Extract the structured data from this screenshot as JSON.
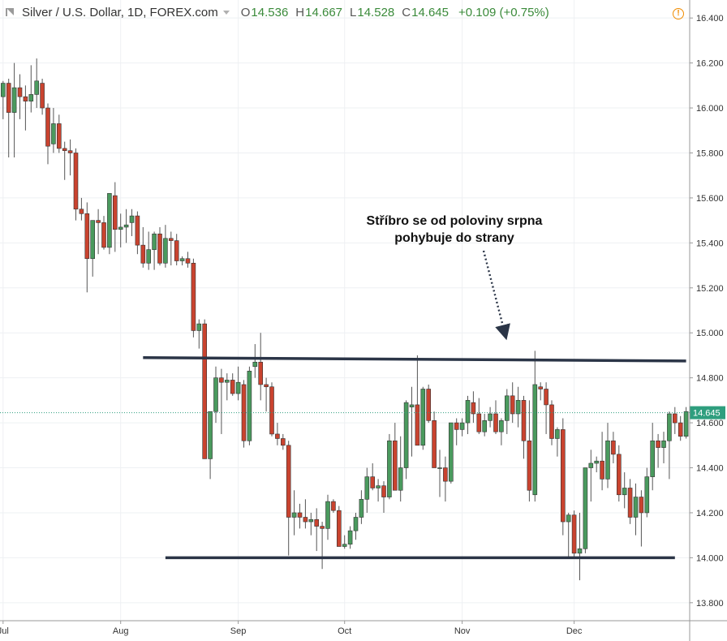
{
  "header": {
    "symbol": "Silver / U.S. Dollar, 1D, FOREX.com",
    "open_label": "O",
    "open": "14.536",
    "high_label": "H",
    "high": "14.667",
    "low_label": "L",
    "low": "14.528",
    "close_label": "C",
    "close": "14.645",
    "change": "+0.109 (+0.75%)"
  },
  "icons": {
    "symbol": "flag-icon",
    "alert": "warning-icon"
  },
  "colors": {
    "up": "#4a9a5e",
    "down": "#c9432f",
    "level_line": "#2b3547",
    "last_price": "#2e9e7e"
  },
  "annotation": {
    "line1": "Stříbro se od poloviny srpna",
    "line2": "pohybuje do strany"
  },
  "chart_data": {
    "type": "candlestick",
    "y_ticks": [
      "16.400",
      "16.200",
      "16.000",
      "15.800",
      "15.600",
      "15.400",
      "15.200",
      "15.000",
      "14.800",
      "14.600",
      "14.400",
      "14.200",
      "14.000",
      "13.800"
    ],
    "ylim": [
      13.72,
      16.48
    ],
    "x_ticks": [
      {
        "label": "Jul",
        "index": 0
      },
      {
        "label": "Aug",
        "index": 21
      },
      {
        "label": "Sep",
        "index": 42
      },
      {
        "label": "Oct",
        "index": 61
      },
      {
        "label": "Nov",
        "index": 82
      },
      {
        "label": "Dec",
        "index": 102
      }
    ],
    "last_price": {
      "value": 14.645,
      "label": "14.645"
    },
    "resistance": {
      "start_index": 25,
      "end_index": 122,
      "start_value": 14.89,
      "end_value": 14.875
    },
    "support": {
      "start_index": 29,
      "end_index": 120,
      "value": 14.0
    },
    "candles": [
      [
        16.05,
        16.12,
        15.95,
        16.11
      ],
      [
        16.11,
        16.13,
        15.78,
        15.98
      ],
      [
        15.98,
        16.2,
        15.78,
        16.09
      ],
      [
        16.09,
        16.15,
        15.95,
        16.05
      ],
      [
        16.05,
        16.1,
        15.9,
        16.03
      ],
      [
        16.03,
        16.19,
        15.98,
        16.06
      ],
      [
        16.06,
        16.22,
        16.0,
        16.12
      ],
      [
        16.11,
        16.13,
        15.97,
        16.0
      ],
      [
        16.0,
        16.02,
        15.75,
        15.83
      ],
      [
        15.84,
        16.0,
        15.8,
        15.93
      ],
      [
        15.93,
        15.97,
        15.8,
        15.82
      ],
      [
        15.82,
        15.85,
        15.68,
        15.81
      ],
      [
        15.81,
        15.86,
        15.7,
        15.8
      ],
      [
        15.8,
        15.82,
        15.5,
        15.55
      ],
      [
        15.55,
        15.6,
        15.5,
        15.53
      ],
      [
        15.53,
        15.58,
        15.18,
        15.33
      ],
      [
        15.33,
        15.5,
        15.25,
        15.5
      ],
      [
        15.5,
        15.55,
        15.35,
        15.49
      ],
      [
        15.49,
        15.52,
        15.37,
        15.38
      ],
      [
        15.38,
        15.62,
        15.35,
        15.62
      ],
      [
        15.61,
        15.67,
        15.36,
        15.46
      ],
      [
        15.46,
        15.53,
        15.38,
        15.47
      ],
      [
        15.47,
        15.55,
        15.4,
        15.48
      ],
      [
        15.49,
        15.55,
        15.43,
        15.52
      ],
      [
        15.52,
        15.54,
        15.35,
        15.39
      ],
      [
        15.39,
        15.47,
        15.29,
        15.31
      ],
      [
        15.31,
        15.45,
        15.28,
        15.37
      ],
      [
        15.37,
        15.45,
        15.28,
        15.44
      ],
      [
        15.44,
        15.47,
        15.3,
        15.31
      ],
      [
        15.31,
        15.48,
        15.29,
        15.42
      ],
      [
        15.42,
        15.45,
        15.3,
        15.41
      ],
      [
        15.41,
        15.44,
        15.3,
        15.32
      ],
      [
        15.32,
        15.34,
        15.3,
        15.33
      ],
      [
        15.33,
        15.36,
        15.29,
        15.31
      ],
      [
        15.31,
        15.33,
        14.98,
        15.01
      ],
      [
        15.01,
        15.06,
        14.93,
        15.04
      ],
      [
        15.04,
        15.06,
        14.44,
        14.44
      ],
      [
        14.44,
        14.65,
        14.35,
        14.65
      ],
      [
        14.65,
        14.85,
        14.6,
        14.8
      ],
      [
        14.8,
        14.84,
        14.55,
        14.78
      ],
      [
        14.78,
        14.82,
        14.7,
        14.79
      ],
      [
        14.79,
        14.82,
        14.72,
        14.73
      ],
      [
        14.73,
        14.85,
        14.7,
        14.78
      ],
      [
        14.77,
        14.79,
        14.49,
        14.52
      ],
      [
        14.52,
        14.85,
        14.5,
        14.83
      ],
      [
        14.85,
        14.95,
        14.8,
        14.87
      ],
      [
        14.87,
        15.0,
        14.7,
        14.77
      ],
      [
        14.77,
        14.8,
        14.65,
        14.76
      ],
      [
        14.76,
        14.78,
        14.54,
        14.55
      ],
      [
        14.55,
        14.6,
        14.5,
        14.53
      ],
      [
        14.53,
        14.55,
        14.48,
        14.5
      ],
      [
        14.5,
        14.52,
        14.01,
        14.18
      ],
      [
        14.18,
        14.3,
        14.1,
        14.2
      ],
      [
        14.2,
        14.24,
        14.13,
        14.18
      ],
      [
        14.18,
        14.26,
        14.13,
        14.16
      ],
      [
        14.16,
        14.2,
        14.1,
        14.17
      ],
      [
        14.17,
        14.22,
        14.03,
        14.14
      ],
      [
        14.14,
        14.16,
        13.95,
        14.13
      ],
      [
        14.13,
        14.28,
        14.08,
        14.25
      ],
      [
        14.25,
        14.26,
        14.2,
        14.21
      ],
      [
        14.21,
        14.23,
        14.05,
        14.05
      ],
      [
        14.05,
        14.1,
        14.04,
        14.06
      ],
      [
        14.06,
        14.14,
        14.04,
        14.12
      ],
      [
        14.12,
        14.2,
        14.08,
        14.18
      ],
      [
        14.18,
        14.3,
        14.15,
        14.26
      ],
      [
        14.26,
        14.4,
        14.2,
        14.36
      ],
      [
        14.36,
        14.42,
        14.3,
        14.31
      ],
      [
        14.31,
        14.35,
        14.25,
        14.32
      ],
      [
        14.32,
        14.34,
        14.2,
        14.27
      ],
      [
        14.27,
        14.55,
        14.26,
        14.52
      ],
      [
        14.52,
        14.6,
        14.3,
        14.3
      ],
      [
        14.3,
        14.54,
        14.25,
        14.4
      ],
      [
        14.4,
        14.7,
        14.35,
        14.69
      ],
      [
        14.67,
        14.76,
        14.45,
        14.68
      ],
      [
        14.68,
        14.9,
        14.5,
        14.5
      ],
      [
        14.5,
        14.76,
        14.48,
        14.75
      ],
      [
        14.75,
        14.77,
        14.6,
        14.61
      ],
      [
        14.61,
        14.65,
        14.4,
        14.4
      ],
      [
        14.4,
        14.48,
        14.27,
        14.4
      ],
      [
        14.4,
        14.45,
        14.25,
        14.34
      ],
      [
        14.34,
        14.6,
        14.33,
        14.6
      ],
      [
        14.6,
        14.62,
        14.5,
        14.57
      ],
      [
        14.57,
        14.62,
        14.54,
        14.6
      ],
      [
        14.6,
        14.72,
        14.55,
        14.7
      ],
      [
        14.69,
        14.74,
        14.6,
        14.64
      ],
      [
        14.64,
        14.71,
        14.55,
        14.56
      ],
      [
        14.56,
        14.64,
        14.54,
        14.61
      ],
      [
        14.61,
        14.67,
        14.58,
        14.64
      ],
      [
        14.64,
        14.7,
        14.55,
        14.56
      ],
      [
        14.56,
        14.62,
        14.5,
        14.61
      ],
      [
        14.61,
        14.75,
        14.55,
        14.72
      ],
      [
        14.72,
        14.78,
        14.6,
        14.64
      ],
      [
        14.64,
        14.76,
        14.58,
        14.7
      ],
      [
        14.7,
        14.72,
        14.44,
        14.52
      ],
      [
        14.52,
        14.7,
        14.25,
        14.3
      ],
      [
        14.28,
        14.92,
        14.25,
        14.77
      ],
      [
        14.76,
        14.78,
        14.7,
        14.75
      ],
      [
        14.75,
        14.78,
        14.55,
        14.68
      ],
      [
        14.68,
        14.7,
        14.5,
        14.53
      ],
      [
        14.53,
        14.58,
        14.45,
        14.57
      ],
      [
        14.57,
        14.62,
        14.1,
        14.16
      ],
      [
        14.16,
        14.2,
        14.0,
        14.19
      ],
      [
        14.19,
        14.21,
        14.0,
        14.02
      ],
      [
        14.02,
        14.2,
        13.9,
        14.04
      ],
      [
        14.04,
        14.4,
        14.02,
        14.4
      ],
      [
        14.4,
        14.48,
        14.25,
        14.42
      ],
      [
        14.42,
        14.45,
        14.38,
        14.43
      ],
      [
        14.43,
        14.56,
        14.3,
        14.35
      ],
      [
        14.35,
        14.6,
        14.31,
        14.52
      ],
      [
        14.52,
        14.56,
        14.42,
        14.46
      ],
      [
        14.46,
        14.5,
        14.25,
        14.28
      ],
      [
        14.28,
        14.38,
        14.22,
        14.31
      ],
      [
        14.31,
        14.35,
        14.15,
        14.18
      ],
      [
        14.18,
        14.33,
        14.1,
        14.27
      ],
      [
        14.27,
        14.3,
        14.05,
        14.2
      ],
      [
        14.2,
        14.4,
        14.18,
        14.36
      ],
      [
        14.36,
        14.6,
        14.3,
        14.52
      ],
      [
        14.52,
        14.55,
        14.4,
        14.49
      ],
      [
        14.49,
        14.56,
        14.42,
        14.52
      ],
      [
        14.52,
        14.65,
        14.35,
        14.64
      ],
      [
        14.64,
        14.67,
        14.55,
        14.6
      ],
      [
        14.6,
        14.63,
        14.52,
        14.54
      ],
      [
        14.54,
        14.67,
        14.53,
        14.65
      ]
    ]
  }
}
